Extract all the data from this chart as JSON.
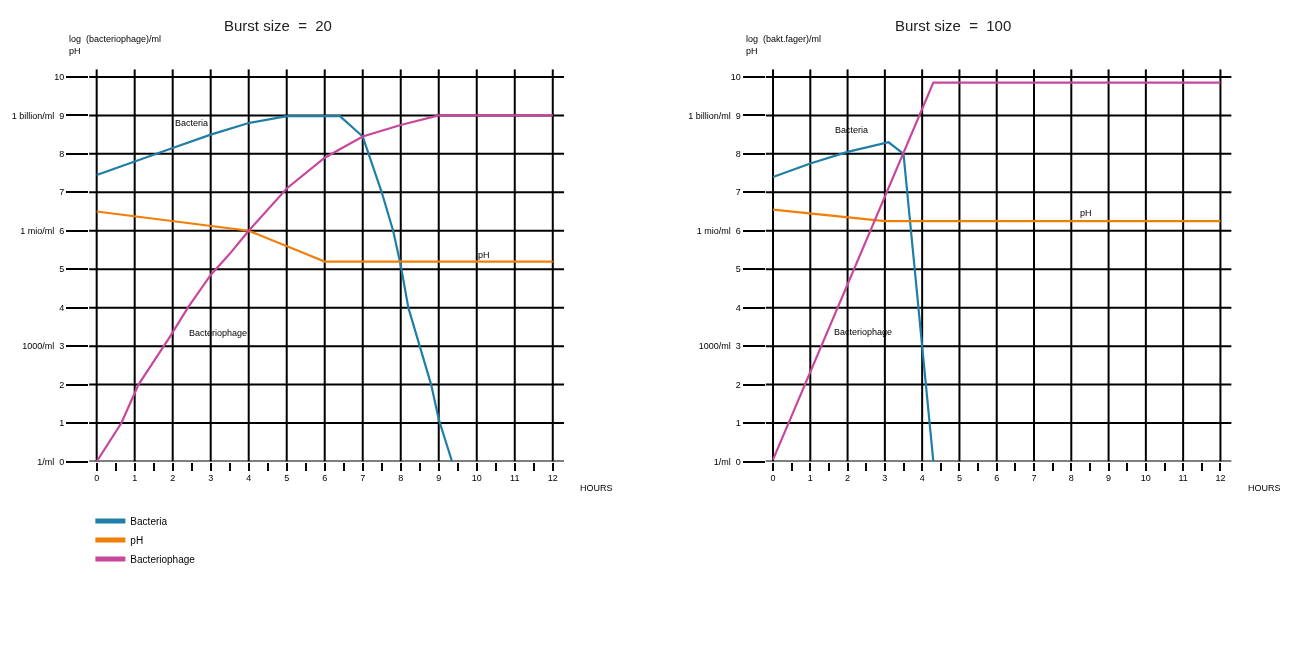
{
  "chart_data": [
    {
      "type": "line",
      "title": "Burst size  =  20",
      "xlabel": "HOURS",
      "ylabel": "log  (bacteriophage)/ml\npH",
      "xlim": [
        -0.2,
        12.3
      ],
      "ylim": [
        0,
        10.2
      ],
      "xticks": [
        0,
        {
          "value": 0.5,
          "label": null
        },
        1,
        {
          "value": 1.5,
          "label": null
        },
        2,
        {
          "value": 2.5,
          "label": null
        },
        3,
        {
          "value": 3.5,
          "label": null
        },
        4,
        {
          "value": 4.5,
          "label": null
        },
        5,
        {
          "value": 5.5,
          "label": null
        },
        6,
        {
          "value": 6.5,
          "label": null
        },
        7,
        {
          "value": 7.5,
          "label": null
        },
        8,
        {
          "value": 8.5,
          "label": null
        },
        9,
        {
          "value": 9.5,
          "label": null
        },
        10,
        {
          "value": 10.5,
          "label": null
        },
        11,
        {
          "value": 11.5,
          "label": null
        },
        12
      ],
      "yticks": [
        {
          "value": 0,
          "label": "1/ml  0"
        },
        1,
        2,
        {
          "value": 3,
          "label": "1000/ml  3"
        },
        4,
        5,
        {
          "value": 6,
          "label": "1 mio/ml  6"
        },
        7,
        8,
        {
          "value": 9,
          "label": "1 billion/ml  9"
        },
        10
      ],
      "grid": true,
      "legend": "bottom left",
      "marker": "none",
      "line_style": "solid",
      "series": [
        {
          "name": "Bacteria",
          "color": "#1f7ea6",
          "x": [
            0,
            1,
            2,
            3,
            4,
            5,
            6.4,
            7,
            7.5,
            7.8,
            8,
            8.2,
            8.5,
            8.8,
            9,
            9.35
          ],
          "values": [
            7.45,
            7.8,
            8.15,
            8.5,
            8.8,
            8.98,
            8.98,
            8.45,
            7,
            6,
            5.1,
            4,
            3,
            2,
            1.1,
            0
          ]
        },
        {
          "name": "pH",
          "color": "#f07f0a",
          "x": [
            0,
            4,
            6,
            12
          ],
          "values": [
            6.5,
            6,
            5.2,
            5.2
          ]
        },
        {
          "name": "Bacteriophage",
          "color": "#c8479c",
          "x": [
            0,
            0.65,
            1.1,
            1.9,
            2.4,
            3,
            3.5,
            4,
            5,
            6,
            7,
            8,
            9,
            12
          ],
          "values": [
            0,
            1,
            2,
            3.2,
            4,
            4.85,
            5.4,
            6,
            7.1,
            7.9,
            8.45,
            8.75,
            9,
            9
          ]
        }
      ],
      "annotations": [
        "Bacteria",
        "Bacteriophage",
        "pH"
      ]
    },
    {
      "type": "line",
      "title": "Burst size  =  100",
      "xlabel": "HOURS",
      "ylabel": "log  (bakt.fager)/ml\npH",
      "xlim": [
        -0.2,
        12.3
      ],
      "ylim": [
        0,
        10.2
      ],
      "xticks": [
        0,
        {
          "value": 0.5,
          "label": null
        },
        1,
        {
          "value": 1.5,
          "label": null
        },
        2,
        {
          "value": 2.5,
          "label": null
        },
        3,
        {
          "value": 3.5,
          "label": null
        },
        4,
        {
          "value": 4.5,
          "label": null
        },
        5,
        {
          "value": 5.5,
          "label": null
        },
        6,
        {
          "value": 6.5,
          "label": null
        },
        7,
        {
          "value": 7.5,
          "label": null
        },
        8,
        {
          "value": 8.5,
          "label": null
        },
        9,
        {
          "value": 9.5,
          "label": null
        },
        10,
        {
          "value": 10.5,
          "label": null
        },
        11,
        {
          "value": 11.5,
          "label": null
        },
        12
      ],
      "yticks": [
        {
          "value": 0,
          "label": "1/ml  0"
        },
        1,
        2,
        {
          "value": 3,
          "label": "1000/ml  3"
        },
        4,
        5,
        {
          "value": 6,
          "label": "1 mio/ml  6"
        },
        7,
        8,
        {
          "value": 9,
          "label": "1 billion/ml  9"
        },
        10
      ],
      "grid": true,
      "marker": "none",
      "line_style": "solid",
      "series": [
        {
          "color": "#1f7ea6",
          "x": [
            0,
            1,
            2,
            3.1,
            3.5,
            3.8,
            4,
            4.3
          ],
          "values": [
            7.4,
            7.75,
            8.05,
            8.3,
            8,
            5,
            3,
            0
          ]
        },
        {
          "color": "#f07f0a",
          "x": [
            0,
            3,
            12
          ],
          "values": [
            6.55,
            6.25,
            6.25
          ]
        },
        {
          "color": "#c8479c",
          "x": [
            0,
            4.3,
            12
          ],
          "values": [
            0.05,
            9.85,
            9.85
          ]
        }
      ],
      "annotations": [
        "Bacteria",
        "Bacteriophage",
        "pH"
      ]
    }
  ]
}
